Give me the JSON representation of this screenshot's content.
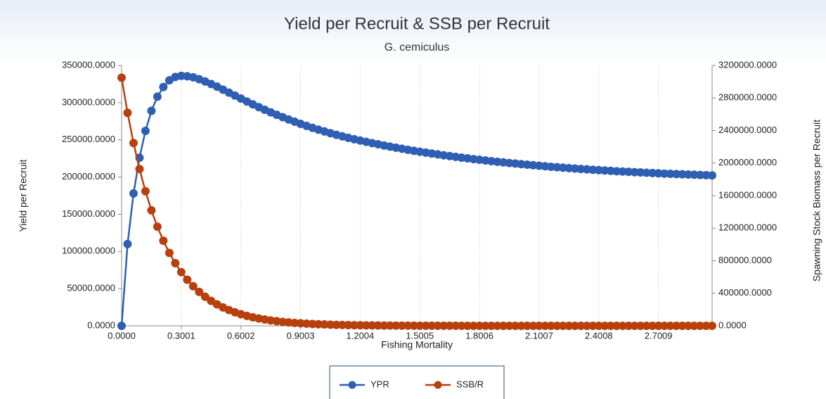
{
  "chart_data": {
    "type": "line",
    "title": "Yield per Recruit & SSB per Recruit",
    "subtitle": "G. cemiculus",
    "x_label": "Fishing Mortality",
    "y_label": "Yield per Recruit",
    "y2_label": "Spawning Stock Biomass per Recruit",
    "x": [
      0,
      0.03001,
      0.06002,
      0.09003,
      0.12004,
      0.15005,
      0.18006,
      0.21007,
      0.24008,
      0.27009,
      0.3001,
      0.33011,
      0.36012,
      0.39013,
      0.42014,
      0.45015,
      0.48016,
      0.51017,
      0.54018,
      0.57019,
      0.6002,
      0.63021,
      0.66022,
      0.69023,
      0.72024,
      0.75025,
      0.78026,
      0.81027,
      0.84028,
      0.87029,
      0.9003,
      0.93031,
      0.96032,
      0.99033,
      1.02034,
      1.05035,
      1.08036,
      1.11037,
      1.14038,
      1.17039,
      1.2004,
      1.23041,
      1.26042,
      1.29043,
      1.32044,
      1.35045,
      1.38046,
      1.41047,
      1.44048,
      1.47049,
      1.5005,
      1.53051,
      1.56052,
      1.59053,
      1.62054,
      1.65055,
      1.68056,
      1.71057,
      1.74058,
      1.77059,
      1.8006,
      1.83061,
      1.86062,
      1.89063,
      1.92064,
      1.95065,
      1.98066,
      2.01067,
      2.04068,
      2.07069,
      2.1007,
      2.13071,
      2.16072,
      2.19073,
      2.22074,
      2.25075,
      2.28076,
      2.31077,
      2.34078,
      2.37079,
      2.4008,
      2.43081,
      2.46082,
      2.49083,
      2.52084,
      2.55085,
      2.58086,
      2.61087,
      2.64088,
      2.67089,
      2.7009,
      2.73091,
      2.76092,
      2.79093,
      2.82094,
      2.85095,
      2.88096,
      2.91097,
      2.94098,
      2.97099
    ],
    "series": [
      {
        "name": "YPR",
        "color": "#2f5fb3",
        "values": [
          0,
          110000,
          178000,
          226000,
          262000,
          289000,
          308000,
          321000,
          330000,
          334500,
          336000,
          335500,
          334000,
          331500,
          328500,
          325000,
          321500,
          317500,
          313500,
          309500,
          305500,
          301500,
          297700,
          294000,
          290400,
          287000,
          283700,
          280500,
          277400,
          274400,
          271500,
          268800,
          266200,
          263700,
          261300,
          259000,
          256800,
          254700,
          252700,
          250800,
          249000,
          247300,
          245600,
          244000,
          242400,
          240900,
          239400,
          238000,
          236600,
          235300,
          234000,
          232800,
          231600,
          230400,
          229300,
          228200,
          227100,
          226100,
          225100,
          224100,
          223200,
          222300,
          221400,
          220500,
          219700,
          218900,
          218100,
          217300,
          216600,
          215900,
          215200,
          214500,
          213800,
          213200,
          212600,
          212000,
          211400,
          210800,
          210300,
          209800,
          209300,
          208800,
          208300,
          207800,
          207400,
          207000,
          206600,
          206200,
          205800,
          205400,
          205000,
          204600,
          204300,
          204000,
          203700,
          203400,
          203100,
          202800,
          202500,
          202200
        ]
      },
      {
        "name": "SSB/R",
        "color": "#b8400e",
        "axis": "y2",
        "values": [
          3050000,
          2617000,
          2246000,
          1927000,
          1654000,
          1419000,
          1218000,
          1045000,
          896500,
          769300,
          660100,
          566400,
          486100,
          417100,
          357900,
          307100,
          263500,
          226100,
          194000,
          166500,
          142900,
          122600,
          105200,
          90270,
          77460,
          66470,
          57040,
          48940,
          42000,
          36040,
          30920,
          26530,
          22770,
          19540,
          16760,
          14390,
          12340,
          10590,
          9090,
          7800,
          6690,
          5740,
          4930,
          4230,
          3630,
          3110,
          2670,
          2290,
          1970,
          1690,
          1450,
          1240,
          1070,
          915,
          785,
          674,
          578,
          496,
          426,
          365,
          313,
          269,
          231,
          198,
          170,
          146,
          125,
          107,
          92,
          79,
          68,
          58,
          50,
          43,
          37,
          31,
          27,
          23,
          20,
          17,
          15,
          13,
          11,
          9,
          8,
          7,
          6,
          5,
          4,
          4,
          3,
          3,
          2,
          2,
          2,
          2,
          1,
          1,
          1,
          1
        ]
      }
    ],
    "xlim": [
      0,
      2.97099
    ],
    "xticks": [
      {
        "value": 0,
        "label": "0.0000"
      },
      0.3001,
      0.6002,
      0.9003,
      1.2004,
      1.5005,
      1.8006,
      2.1007,
      2.4008,
      2.7009
    ],
    "ylim": [
      0,
      350000
    ],
    "yticks": [
      {
        "value": 0,
        "label": "0.0000"
      },
      {
        "value": 50000,
        "label": "50000.0000"
      },
      {
        "value": 100000,
        "label": "100000.0000"
      },
      {
        "value": 150000,
        "label": "150000.0000"
      },
      {
        "value": 200000,
        "label": "200000.0000"
      },
      {
        "value": 250000,
        "label": "250000.0000"
      },
      {
        "value": 300000,
        "label": "300000.0000"
      },
      {
        "value": 350000,
        "label": "350000.0000"
      }
    ],
    "y2lim": [
      0,
      3200000
    ],
    "y2ticks": [
      {
        "value": 0,
        "label": "0.0000"
      },
      {
        "value": 400000,
        "label": "400000.0000"
      },
      {
        "value": 800000,
        "label": "800000.0000"
      },
      {
        "value": 1200000,
        "label": "1200000.0000"
      },
      {
        "value": 1600000,
        "label": "1600000.0000"
      },
      {
        "value": 2000000,
        "label": "2000000.0000"
      },
      {
        "value": 2400000,
        "label": "2400000.0000"
      },
      {
        "value": 2800000,
        "label": "2800000.0000"
      },
      {
        "value": 3200000,
        "label": "3200000.0000"
      }
    ],
    "grid": true,
    "legend": "bottom"
  }
}
